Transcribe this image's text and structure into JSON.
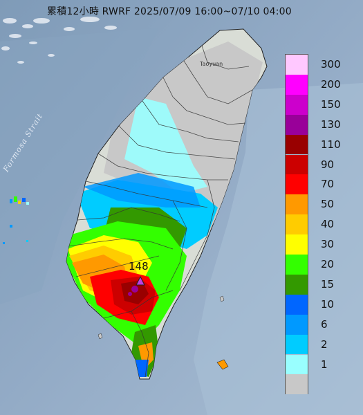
{
  "title": "累積12小時 RWRF 2025/07/09 16:00~07/10 04:00",
  "map_labels": {
    "strait": "Formosa Strait",
    "city": "Taoyuan"
  },
  "peak": {
    "value": "148",
    "marker_icon": "triangle-marker-icon",
    "marker_color": "#c040e0"
  },
  "legend": {
    "levels": [
      {
        "label": "300",
        "color": "#ffc8ff"
      },
      {
        "label": "200",
        "color": "#ff00ff"
      },
      {
        "label": "150",
        "color": "#cc00cc"
      },
      {
        "label": "130",
        "color": "#990099"
      },
      {
        "label": "110",
        "color": "#990000"
      },
      {
        "label": "90",
        "color": "#cc0000"
      },
      {
        "label": "70",
        "color": "#ff0000"
      },
      {
        "label": "50",
        "color": "#ff9900"
      },
      {
        "label": "40",
        "color": "#ffcc00"
      },
      {
        "label": "30",
        "color": "#ffff00"
      },
      {
        "label": "20",
        "color": "#33ff00"
      },
      {
        "label": "15",
        "color": "#339900"
      },
      {
        "label": "10",
        "color": "#0066ff"
      },
      {
        "label": "6",
        "color": "#0099ff"
      },
      {
        "label": "2",
        "color": "#00ccff"
      },
      {
        "label": "1",
        "color": "#99ffff"
      },
      {
        "label": "",
        "color": "#c8c8c8"
      }
    ]
  }
}
